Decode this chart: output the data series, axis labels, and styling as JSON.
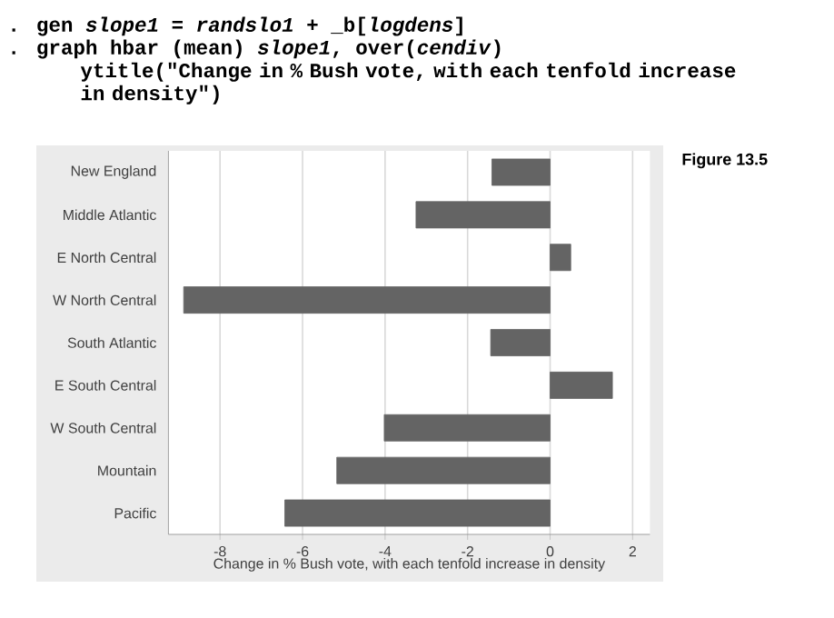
{
  "chart_data": {
    "type": "bar",
    "orientation": "horizontal",
    "categories": [
      "New England",
      "Middle Atlantic",
      "E North Central",
      "W North Central",
      "South Atlantic",
      "E South Central",
      "W South Central",
      "Mountain",
      "Pacific"
    ],
    "values": [
      -1.41,
      -3.25,
      0.5,
      -8.88,
      -1.44,
      1.51,
      -4.02,
      -5.17,
      -6.43
    ],
    "color": "#646464",
    "xlim": [
      -9.25,
      2.42
    ],
    "xticks": [
      -8,
      -6,
      -4,
      -2,
      0,
      2
    ],
    "xlabel": "Change in % Bush vote, with each tenfold increase in density",
    "grid": "x",
    "annotations": [
      ". gen *slope1* = *randslo1* + _b[*logdens*]",
      ". graph hbar (mean) *slope1*, over(*cendiv*)",
      "ytitle(\"Change in % Bush vote, with each tenfold increase in density\")",
      "Figure 13.5"
    ]
  }
}
